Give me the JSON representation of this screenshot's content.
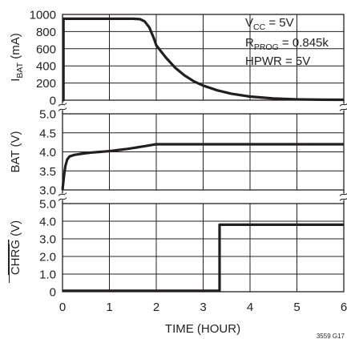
{
  "chart_data": {
    "type": "line",
    "figure_id": "3559 G17",
    "x": {
      "label": "TIME (HOUR)",
      "lim": [
        0,
        6
      ],
      "ticks": [
        "0",
        "1",
        "2",
        "3",
        "4",
        "5",
        "6"
      ],
      "grid": true
    },
    "panels": [
      {
        "id": "ibat",
        "ylabel_main": "I",
        "ylabel_sub": "BAT",
        "ylabel_unit": " (mA)",
        "ylim": [
          0,
          1000
        ],
        "yticks": [
          {
            "v": 0,
            "t": "0"
          },
          {
            "v": 200,
            "t": "200"
          },
          {
            "v": 400,
            "t": "400"
          },
          {
            "v": 600,
            "t": "600"
          },
          {
            "v": 800,
            "t": "800"
          },
          {
            "v": 1000,
            "t": "1000"
          }
        ],
        "series": [
          {
            "x": [
              0,
              0.02,
              0.02,
              0.1,
              0.5,
              1.0,
              1.5,
              1.65,
              1.75,
              1.85,
              1.95,
              2.0,
              2.2,
              2.4,
              2.6,
              2.8,
              3.0,
              3.3,
              3.6,
              4.0,
              4.5,
              5.0,
              5.5,
              6.0
            ],
            "y": [
              0,
              0,
              950,
              950,
              950,
              950,
              950,
              945,
              920,
              850,
              720,
              640,
              500,
              380,
              290,
              220,
              170,
              115,
              75,
              42,
              20,
              10,
              6,
              5
            ]
          }
        ]
      },
      {
        "id": "bat",
        "ylabel": "BAT (V)",
        "ylim": [
          3.0,
          5.0
        ],
        "yticks": [
          {
            "v": 3.0,
            "t": "3.0"
          },
          {
            "v": 3.5,
            "t": "3.5"
          },
          {
            "v": 4.0,
            "t": "4.0"
          },
          {
            "v": 4.5,
            "t": "4.5"
          },
          {
            "v": 5.0,
            "t": "5.0"
          }
        ],
        "series": [
          {
            "x": [
              0,
              0.03,
              0.06,
              0.1,
              0.15,
              0.25,
              0.4,
              0.6,
              0.8,
              1.0,
              1.2,
              1.4,
              1.6,
              1.8,
              1.95,
              2.0,
              3.0,
              4.0,
              5.0,
              6.0
            ],
            "y": [
              3.0,
              3.35,
              3.62,
              3.8,
              3.88,
              3.92,
              3.95,
              3.98,
              4.0,
              4.02,
              4.05,
              4.08,
              4.12,
              4.16,
              4.19,
              4.2,
              4.2,
              4.2,
              4.2,
              4.2
            ]
          }
        ]
      },
      {
        "id": "chrg",
        "ylabel": "CHRG (V)",
        "ylabel_overline": "CHRG",
        "ylim": [
          0,
          5.0
        ],
        "yticks": [
          {
            "v": 0,
            "t": "0"
          },
          {
            "v": 1.0,
            "t": "1.0"
          },
          {
            "v": 2.0,
            "t": "2.0"
          },
          {
            "v": 3.0,
            "t": "3.0"
          },
          {
            "v": 4.0,
            "t": "4.0"
          },
          {
            "v": 5.0,
            "t": "5.0"
          }
        ],
        "series": [
          {
            "x": [
              0,
              3.35,
              3.35,
              6.0
            ],
            "y": [
              0.05,
              0.05,
              3.8,
              3.8
            ]
          }
        ]
      }
    ],
    "annotations": [
      {
        "main": "V",
        "sub": "CC",
        "rest": " = 5V"
      },
      {
        "main": "R",
        "sub": "PROG",
        "rest": " = 0.845k"
      },
      {
        "main": "HPWR = 5V",
        "sub": "",
        "rest": ""
      }
    ]
  }
}
